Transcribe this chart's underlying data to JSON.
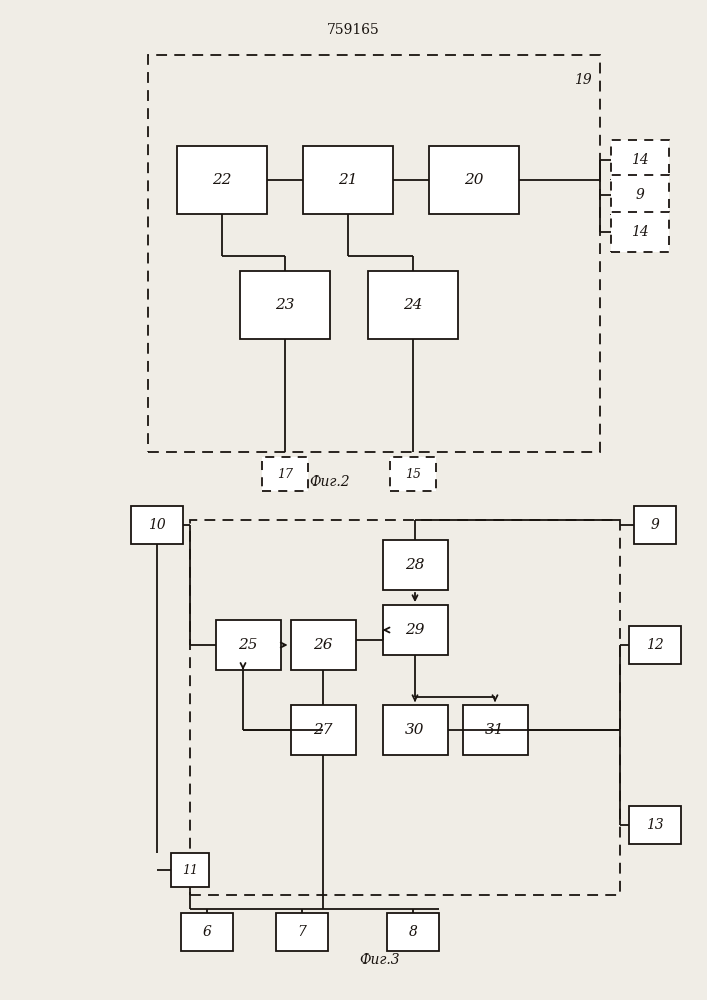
{
  "title": "759165",
  "fig1_caption": "Фиг.2",
  "fig2_caption": "Фиг.3",
  "paper_color": "#f0ede6",
  "line_color": "#1a1410",
  "box_face": "#ffffff",
  "lw": 1.3
}
